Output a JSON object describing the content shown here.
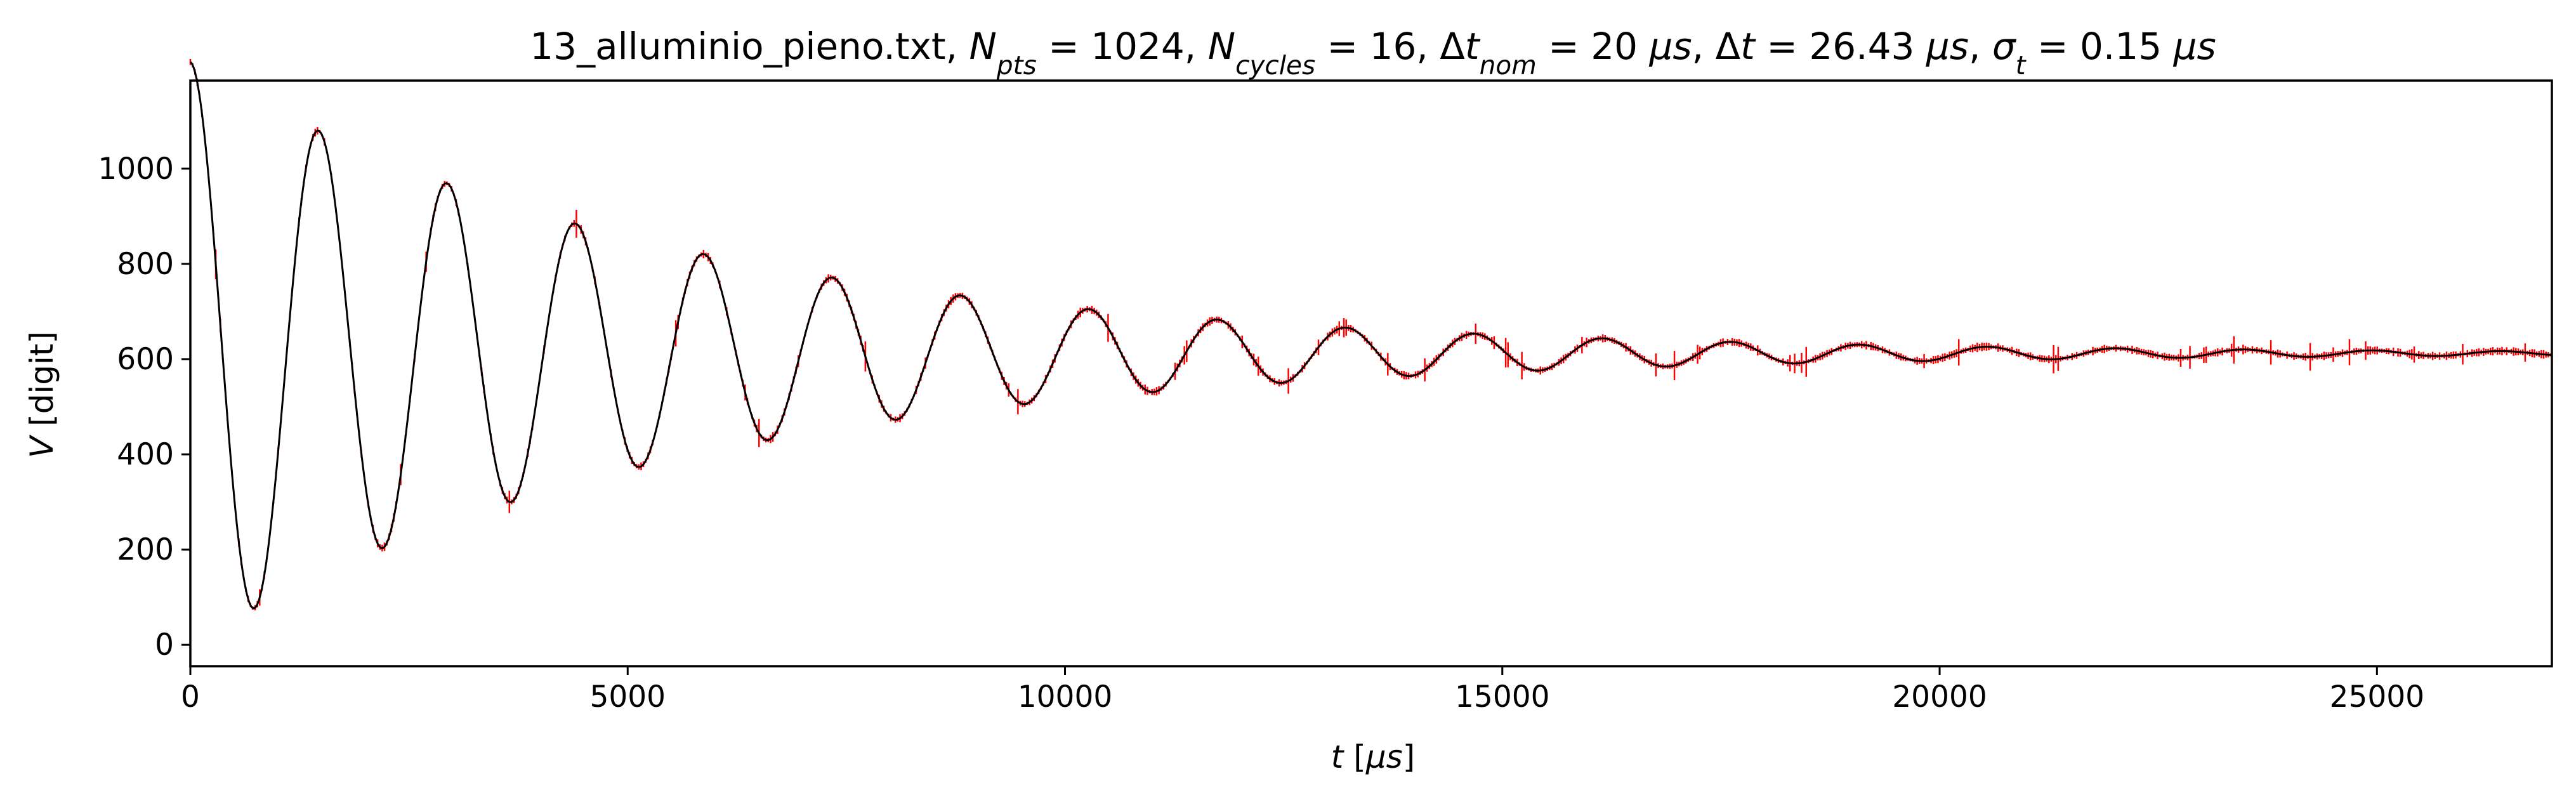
{
  "chart_data": {
    "type": "line",
    "title": {
      "runs": [
        {
          "text": "13_alluminio_pieno.txt, "
        },
        {
          "text": "N",
          "italic": true
        },
        {
          "text": "pts",
          "italic": true,
          "sub": true
        },
        {
          "text": " = 1024, "
        },
        {
          "text": "N",
          "italic": true
        },
        {
          "text": "cycles",
          "italic": true,
          "sub": true
        },
        {
          "text": " = 16, Δ"
        },
        {
          "text": "t",
          "italic": true
        },
        {
          "text": "nom",
          "italic": true,
          "sub": true
        },
        {
          "text": " = 20 "
        },
        {
          "text": "μs",
          "italic": true
        },
        {
          "text": ", Δ"
        },
        {
          "text": "t",
          "italic": true
        },
        {
          "text": " = 26.43 "
        },
        {
          "text": "μs",
          "italic": true
        },
        {
          "text": ", "
        },
        {
          "text": "σ",
          "italic": true
        },
        {
          "text": "t",
          "italic": true,
          "sub": true
        },
        {
          "text": " = 0.15 "
        },
        {
          "text": "μs",
          "italic": true
        }
      ]
    },
    "xlabel": {
      "runs": [
        {
          "text": "t",
          "italic": true
        },
        {
          "text": " ["
        },
        {
          "text": "μs",
          "italic": true
        },
        {
          "text": "]"
        }
      ]
    },
    "ylabel": {
      "runs": [
        {
          "text": "V",
          "italic": true
        },
        {
          "text": " [digit]"
        }
      ]
    },
    "xlim": [
      0,
      27000
    ],
    "ylim": [
      -45,
      1185
    ],
    "xticks": [
      0,
      5000,
      10000,
      15000,
      20000,
      25000
    ],
    "yticks": [
      0,
      200,
      400,
      600,
      800,
      1000
    ],
    "grid": false,
    "series": [
      {
        "style": "line",
        "color": "#000000",
        "model": "damped_sine",
        "offset": 612,
        "amplitude": 612,
        "decay_time_us": 5450,
        "period_us": 1468,
        "phase_rad": 3.14,
        "x_start": 0,
        "x_end": 27000
      },
      {
        "style": "errorbar",
        "color": "#ff0000",
        "n_points": 1024,
        "dt_us": 26.43,
        "x_start": 0,
        "x_end": 27000
      }
    ]
  }
}
